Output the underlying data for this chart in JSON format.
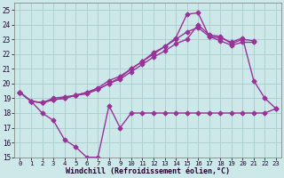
{
  "bg_color": "#cce8e8",
  "grid_color": "#aacccc",
  "line_color": "#993399",
  "line_width": 1.0,
  "marker": "D",
  "marker_size": 2.5,
  "xlabel": "Windchill (Refroidissement éolien,°C)",
  "ylim": [
    15,
    25.5
  ],
  "xlim": [
    -0.5,
    23.5
  ],
  "yticks": [
    15,
    16,
    17,
    18,
    19,
    20,
    21,
    22,
    23,
    24,
    25
  ],
  "xticks": [
    0,
    1,
    2,
    3,
    4,
    5,
    6,
    7,
    8,
    9,
    10,
    11,
    12,
    13,
    14,
    15,
    16,
    17,
    18,
    19,
    20,
    21,
    22,
    23
  ],
  "series": [
    {
      "x": [
        0,
        1,
        2,
        3,
        4,
        5,
        6,
        7,
        8,
        9,
        10,
        11,
        12,
        13,
        14,
        15,
        16,
        17,
        18,
        19,
        20,
        21
      ],
      "y": [
        19.4,
        18.8,
        18.7,
        19.0,
        19.1,
        19.2,
        19.4,
        19.7,
        20.2,
        20.5,
        21.0,
        21.5,
        22.0,
        22.5,
        23.0,
        23.5,
        23.8,
        23.2,
        22.9,
        22.6,
        22.8,
        22.8
      ]
    },
    {
      "x": [
        0,
        1,
        2,
        3,
        4,
        5,
        6,
        7,
        8,
        9,
        10,
        11,
        12,
        13,
        14,
        15,
        16,
        17,
        18,
        19,
        20,
        21
      ],
      "y": [
        19.4,
        18.8,
        18.7,
        18.9,
        19.0,
        19.2,
        19.3,
        19.6,
        20.0,
        20.3,
        20.8,
        21.3,
        21.8,
        22.2,
        22.7,
        23.0,
        24.0,
        23.3,
        23.2,
        22.7,
        23.0,
        22.9
      ]
    },
    {
      "x": [
        0,
        1,
        2,
        3,
        4,
        5,
        6,
        7,
        8,
        9,
        10,
        11,
        12,
        13,
        14,
        15,
        16,
        17,
        18,
        19,
        20,
        21,
        22,
        23
      ],
      "y": [
        19.4,
        18.8,
        18.7,
        18.9,
        19.0,
        19.2,
        19.4,
        19.6,
        20.0,
        20.4,
        21.0,
        21.5,
        22.1,
        22.5,
        23.1,
        24.7,
        24.8,
        23.2,
        23.1,
        22.8,
        23.1,
        20.2,
        19.0,
        18.3
      ]
    },
    {
      "x": [
        0,
        1,
        2,
        3,
        4,
        5,
        6,
        7,
        8,
        9,
        10,
        11,
        12,
        13,
        14,
        15,
        16,
        17,
        18,
        19,
        20,
        21,
        22,
        23
      ],
      "y": [
        19.4,
        18.8,
        18.0,
        17.5,
        16.2,
        15.7,
        15.0,
        15.0,
        18.5,
        17.0,
        18.0,
        18.0,
        18.0,
        18.0,
        18.0,
        18.0,
        18.0,
        18.0,
        18.0,
        18.0,
        18.0,
        18.0,
        18.0,
        18.3
      ]
    }
  ]
}
